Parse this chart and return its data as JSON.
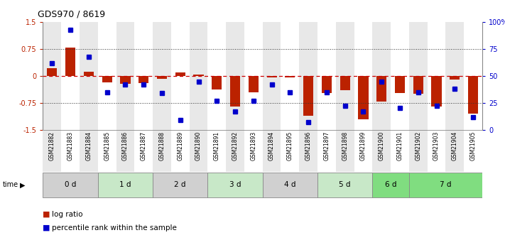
{
  "title": "GDS970 / 8619",
  "samples": [
    "GSM21882",
    "GSM21883",
    "GSM21884",
    "GSM21885",
    "GSM21886",
    "GSM21887",
    "GSM21888",
    "GSM21889",
    "GSM21890",
    "GSM21891",
    "GSM21892",
    "GSM21893",
    "GSM21894",
    "GSM21895",
    "GSM21896",
    "GSM21897",
    "GSM21898",
    "GSM21899",
    "GSM21900",
    "GSM21901",
    "GSM21902",
    "GSM21903",
    "GSM21904",
    "GSM21905"
  ],
  "log_ratio": [
    0.22,
    0.78,
    0.12,
    -0.18,
    -0.22,
    -0.2,
    -0.08,
    0.1,
    0.03,
    -0.38,
    -0.85,
    -0.45,
    -0.05,
    -0.05,
    -1.1,
    -0.48,
    -0.4,
    -1.2,
    -0.72,
    -0.48,
    -0.5,
    -0.85,
    -0.1,
    -1.05
  ],
  "percentile_rank": [
    62,
    93,
    68,
    35,
    42,
    42,
    34,
    9,
    45,
    27,
    17,
    27,
    42,
    35,
    7,
    35,
    22,
    17,
    45,
    20,
    35,
    22,
    38,
    12
  ],
  "time_groups": [
    {
      "label": "0 d",
      "start": 0,
      "end": 3,
      "color": "#d0d0d0"
    },
    {
      "label": "1 d",
      "start": 3,
      "end": 6,
      "color": "#c8e8c8"
    },
    {
      "label": "2 d",
      "start": 6,
      "end": 9,
      "color": "#d0d0d0"
    },
    {
      "label": "3 d",
      "start": 9,
      "end": 12,
      "color": "#c8e8c8"
    },
    {
      "label": "4 d",
      "start": 12,
      "end": 15,
      "color": "#d0d0d0"
    },
    {
      "label": "5 d",
      "start": 15,
      "end": 18,
      "color": "#c8e8c8"
    },
    {
      "label": "6 d",
      "start": 18,
      "end": 20,
      "color": "#80dd80"
    },
    {
      "label": "7 d",
      "start": 20,
      "end": 24,
      "color": "#80dd80"
    }
  ],
  "ylim": [
    -1.5,
    1.5
  ],
  "right_ylim": [
    0,
    100
  ],
  "bar_color": "#bb2200",
  "dot_color": "#0000cc",
  "hline_color": "#cc0000",
  "dotted_color": "#333333",
  "legend_log_ratio": "log ratio",
  "legend_percentile": "percentile rank within the sample",
  "col_colors": [
    "#e8e8e8",
    "#ffffff"
  ]
}
